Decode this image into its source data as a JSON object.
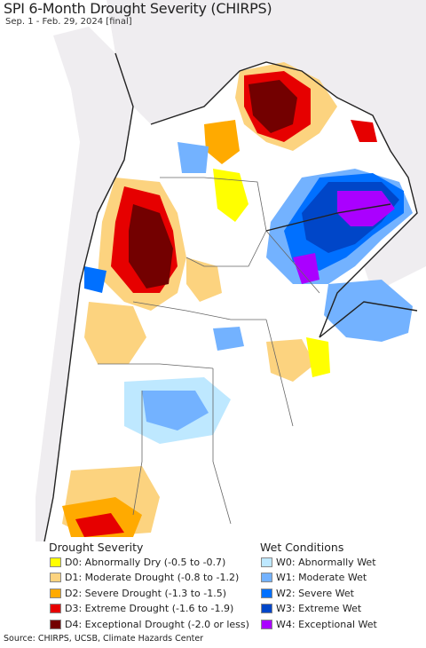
{
  "header": {
    "title": "SPI 6-Month Drought Severity (CHIRPS)",
    "subtitle": "Sep. 1 - Feb. 29, 2024 [final]"
  },
  "legend": {
    "drought_title": "Drought Severity",
    "wet_title": "Wet Conditions",
    "drought_items": [
      {
        "label": "D0: Abnormally Dry (-0.5 to -0.7)",
        "color": "#ffff00"
      },
      {
        "label": "D1: Moderate Drought (-0.8 to -1.2)",
        "color": "#fcd37f"
      },
      {
        "label": "D2: Severe Drought (-1.3 to -1.5)",
        "color": "#ffaa00"
      },
      {
        "label": "D3: Extreme Drought (-1.6 to -1.9)",
        "color": "#e60000"
      },
      {
        "label": "D4: Exceptional Drought (-2.0 or less)",
        "color": "#730000"
      }
    ],
    "wet_items": [
      {
        "label": "W0: Abnormally Wet",
        "color": "#bee8ff"
      },
      {
        "label": "W1: Moderate Wet",
        "color": "#73b2ff"
      },
      {
        "label": "W2: Severe Wet",
        "color": "#0070ff"
      },
      {
        "label": "W3: Extreme Wet",
        "color": "#0046c8"
      },
      {
        "label": "W4: Exceptional Wet",
        "color": "#aa00ff"
      }
    ]
  },
  "footer": {
    "source": "Source: CHIRPS, UCSB, Climate Hazards Center"
  }
}
